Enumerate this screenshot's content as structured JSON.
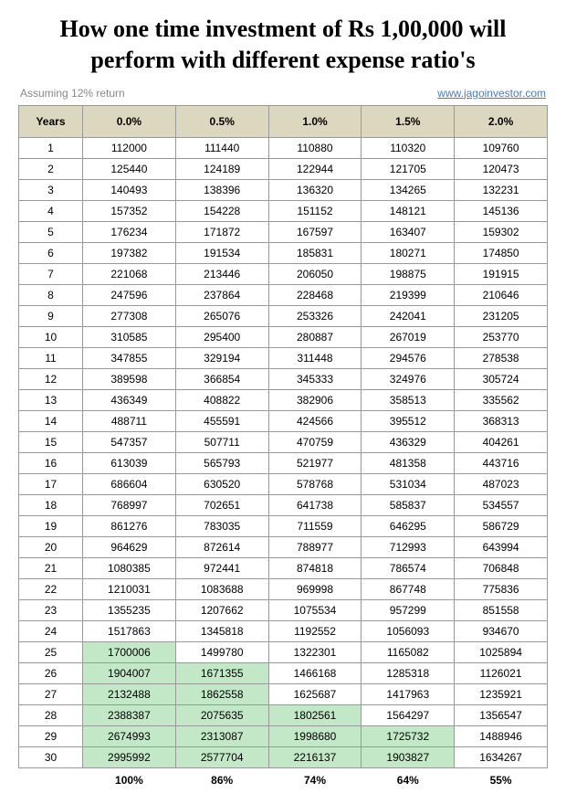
{
  "title": "How one time investment of Rs 1,00,000 will perform with different expense ratio's",
  "assumption": "Assuming 12% return",
  "source_link": "www.jagoinvestor.com",
  "columns": [
    "Years",
    "0.0%",
    "0.5%",
    "1.0%",
    "1.5%",
    "2.0%"
  ],
  "highlight_color": "#c3e8c7",
  "header_bg": "#dcd8bf",
  "rows": [
    {
      "year": 1,
      "v": [
        "112000",
        "111440",
        "110880",
        "110320",
        "109760"
      ],
      "hl": [
        false,
        false,
        false,
        false,
        false
      ]
    },
    {
      "year": 2,
      "v": [
        "125440",
        "124189",
        "122944",
        "121705",
        "120473"
      ],
      "hl": [
        false,
        false,
        false,
        false,
        false
      ]
    },
    {
      "year": 3,
      "v": [
        "140493",
        "138396",
        "136320",
        "134265",
        "132231"
      ],
      "hl": [
        false,
        false,
        false,
        false,
        false
      ]
    },
    {
      "year": 4,
      "v": [
        "157352",
        "154228",
        "151152",
        "148121",
        "145136"
      ],
      "hl": [
        false,
        false,
        false,
        false,
        false
      ]
    },
    {
      "year": 5,
      "v": [
        "176234",
        "171872",
        "167597",
        "163407",
        "159302"
      ],
      "hl": [
        false,
        false,
        false,
        false,
        false
      ]
    },
    {
      "year": 6,
      "v": [
        "197382",
        "191534",
        "185831",
        "180271",
        "174850"
      ],
      "hl": [
        false,
        false,
        false,
        false,
        false
      ]
    },
    {
      "year": 7,
      "v": [
        "221068",
        "213446",
        "206050",
        "198875",
        "191915"
      ],
      "hl": [
        false,
        false,
        false,
        false,
        false
      ]
    },
    {
      "year": 8,
      "v": [
        "247596",
        "237864",
        "228468",
        "219399",
        "210646"
      ],
      "hl": [
        false,
        false,
        false,
        false,
        false
      ]
    },
    {
      "year": 9,
      "v": [
        "277308",
        "265076",
        "253326",
        "242041",
        "231205"
      ],
      "hl": [
        false,
        false,
        false,
        false,
        false
      ]
    },
    {
      "year": 10,
      "v": [
        "310585",
        "295400",
        "280887",
        "267019",
        "253770"
      ],
      "hl": [
        false,
        false,
        false,
        false,
        false
      ]
    },
    {
      "year": 11,
      "v": [
        "347855",
        "329194",
        "311448",
        "294576",
        "278538"
      ],
      "hl": [
        false,
        false,
        false,
        false,
        false
      ]
    },
    {
      "year": 12,
      "v": [
        "389598",
        "366854",
        "345333",
        "324976",
        "305724"
      ],
      "hl": [
        false,
        false,
        false,
        false,
        false
      ]
    },
    {
      "year": 13,
      "v": [
        "436349",
        "408822",
        "382906",
        "358513",
        "335562"
      ],
      "hl": [
        false,
        false,
        false,
        false,
        false
      ]
    },
    {
      "year": 14,
      "v": [
        "488711",
        "455591",
        "424566",
        "395512",
        "368313"
      ],
      "hl": [
        false,
        false,
        false,
        false,
        false
      ]
    },
    {
      "year": 15,
      "v": [
        "547357",
        "507711",
        "470759",
        "436329",
        "404261"
      ],
      "hl": [
        false,
        false,
        false,
        false,
        false
      ]
    },
    {
      "year": 16,
      "v": [
        "613039",
        "565793",
        "521977",
        "481358",
        "443716"
      ],
      "hl": [
        false,
        false,
        false,
        false,
        false
      ]
    },
    {
      "year": 17,
      "v": [
        "686604",
        "630520",
        "578768",
        "531034",
        "487023"
      ],
      "hl": [
        false,
        false,
        false,
        false,
        false
      ]
    },
    {
      "year": 18,
      "v": [
        "768997",
        "702651",
        "641738",
        "585837",
        "534557"
      ],
      "hl": [
        false,
        false,
        false,
        false,
        false
      ]
    },
    {
      "year": 19,
      "v": [
        "861276",
        "783035",
        "711559",
        "646295",
        "586729"
      ],
      "hl": [
        false,
        false,
        false,
        false,
        false
      ]
    },
    {
      "year": 20,
      "v": [
        "964629",
        "872614",
        "788977",
        "712993",
        "643994"
      ],
      "hl": [
        false,
        false,
        false,
        false,
        false
      ]
    },
    {
      "year": 21,
      "v": [
        "1080385",
        "972441",
        "874818",
        "786574",
        "706848"
      ],
      "hl": [
        false,
        false,
        false,
        false,
        false
      ]
    },
    {
      "year": 22,
      "v": [
        "1210031",
        "1083688",
        "969998",
        "867748",
        "775836"
      ],
      "hl": [
        false,
        false,
        false,
        false,
        false
      ]
    },
    {
      "year": 23,
      "v": [
        "1355235",
        "1207662",
        "1075534",
        "957299",
        "851558"
      ],
      "hl": [
        false,
        false,
        false,
        false,
        false
      ]
    },
    {
      "year": 24,
      "v": [
        "1517863",
        "1345818",
        "1192552",
        "1056093",
        "934670"
      ],
      "hl": [
        false,
        false,
        false,
        false,
        false
      ]
    },
    {
      "year": 25,
      "v": [
        "1700006",
        "1499780",
        "1322301",
        "1165082",
        "1025894"
      ],
      "hl": [
        true,
        false,
        false,
        false,
        false
      ]
    },
    {
      "year": 26,
      "v": [
        "1904007",
        "1671355",
        "1466168",
        "1285318",
        "1126021"
      ],
      "hl": [
        true,
        true,
        false,
        false,
        false
      ]
    },
    {
      "year": 27,
      "v": [
        "2132488",
        "1862558",
        "1625687",
        "1417963",
        "1235921"
      ],
      "hl": [
        true,
        true,
        false,
        false,
        false
      ]
    },
    {
      "year": 28,
      "v": [
        "2388387",
        "2075635",
        "1802561",
        "1564297",
        "1356547"
      ],
      "hl": [
        true,
        true,
        true,
        false,
        false
      ]
    },
    {
      "year": 29,
      "v": [
        "2674993",
        "2313087",
        "1998680",
        "1725732",
        "1488946"
      ],
      "hl": [
        true,
        true,
        true,
        true,
        false
      ]
    },
    {
      "year": 30,
      "v": [
        "2995992",
        "2577704",
        "2216137",
        "1903827",
        "1634267"
      ],
      "hl": [
        true,
        true,
        true,
        true,
        false
      ]
    }
  ],
  "footer": [
    "",
    "100%",
    "86%",
    "74%",
    "64%",
    "55%"
  ]
}
